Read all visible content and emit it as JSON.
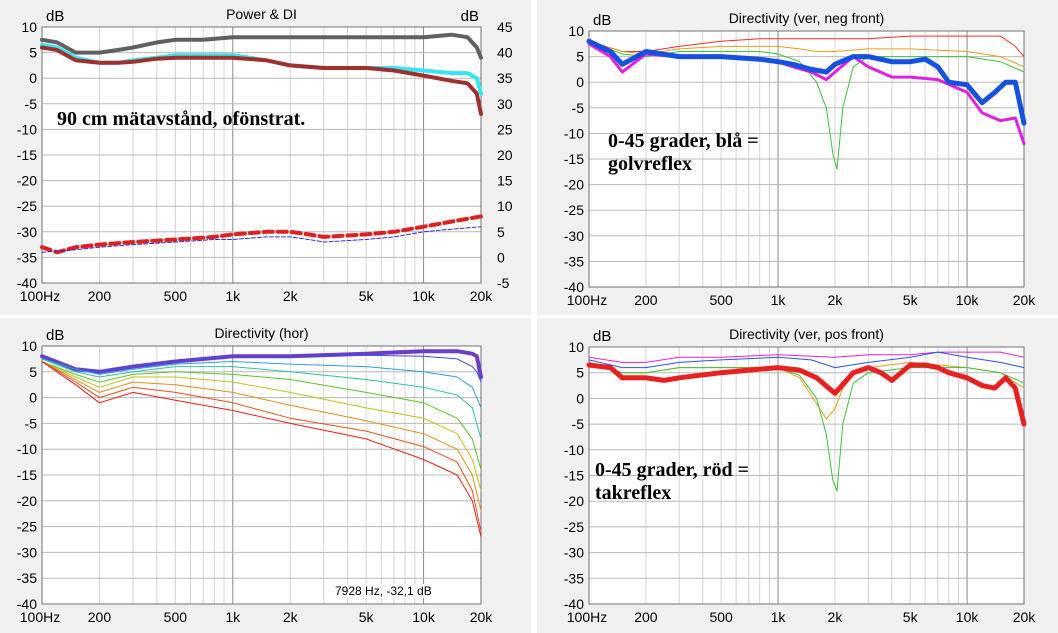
{
  "chart_data": [
    {
      "type": "line",
      "title": "Power & DI",
      "ylabel_left": "dB",
      "ylabel_right": "dB",
      "x_scale": "log",
      "xlim": [
        100,
        20000
      ],
      "ylim": [
        -40,
        10
      ],
      "y2lim": [
        -5,
        45
      ],
      "x_ticks": [
        "100Hz",
        "200",
        "500",
        "1k",
        "2k",
        "5k",
        "10k",
        "20k"
      ],
      "y_ticks": [
        "10",
        "5",
        "0",
        "-5",
        "-10",
        "-15",
        "-20",
        "-25",
        "-30",
        "-35",
        "-40"
      ],
      "y2_ticks": [
        "45",
        "40",
        "35",
        "30",
        "25",
        "20",
        "15",
        "10",
        "5",
        "0",
        "-5"
      ],
      "grid": true,
      "annotation": "90 cm mätavstånd, ofönstrat.",
      "series": [
        {
          "color": "#606060",
          "width": 4,
          "x": [
            100,
            120,
            150,
            200,
            250,
            300,
            400,
            500,
            700,
            1000,
            1500,
            2000,
            3000,
            5000,
            7000,
            10000,
            14000,
            17000,
            19000,
            20000
          ],
          "y": [
            7.5,
            7,
            5,
            5,
            5.5,
            6,
            7,
            7.5,
            7.5,
            8,
            8,
            8,
            8,
            8,
            8,
            8,
            8.5,
            8,
            6,
            4
          ]
        },
        {
          "color": "#33e6f0",
          "width": 4,
          "x": [
            100,
            120,
            150,
            200,
            250,
            300,
            400,
            500,
            700,
            1000,
            1500,
            2000,
            3000,
            5000,
            7000,
            10000,
            14000,
            17000,
            19000,
            20000
          ],
          "y": [
            6.5,
            6,
            4,
            3,
            3,
            3.5,
            4,
            4.5,
            4.5,
            4.5,
            3.5,
            2.5,
            2,
            2,
            2,
            1.5,
            1,
            1,
            0,
            -3
          ]
        },
        {
          "color": "#a03030",
          "width": 4,
          "x": [
            100,
            120,
            150,
            200,
            250,
            300,
            400,
            500,
            700,
            1000,
            1500,
            2000,
            3000,
            5000,
            7000,
            10000,
            14000,
            17000,
            19000,
            20000
          ],
          "y": [
            6,
            5.5,
            3.5,
            3,
            3,
            3.2,
            3.8,
            4,
            4,
            4,
            3.5,
            2.5,
            2,
            2,
            1.5,
            0.5,
            -0.5,
            -1,
            -3,
            -7
          ]
        },
        {
          "color": "#e02020",
          "width": 4,
          "dash": "9,5",
          "x": [
            100,
            120,
            150,
            200,
            300,
            500,
            800,
            1000,
            1500,
            2000,
            2500,
            3000,
            5000,
            7000,
            10000,
            14000,
            20000
          ],
          "y": [
            -33,
            -34,
            -33,
            -32.5,
            -32,
            -31.5,
            -31,
            -30.5,
            -30,
            -30,
            -30.5,
            -31,
            -30.5,
            -30,
            -29,
            -28,
            -27
          ]
        },
        {
          "color": "#3030d0",
          "width": 1,
          "dash": "4,2",
          "x": [
            100,
            150,
            200,
            300,
            500,
            800,
            1000,
            1500,
            2000,
            2500,
            3000,
            5000,
            7000,
            10000,
            14000,
            20000
          ],
          "y": [
            -34,
            -33.5,
            -33,
            -32.5,
            -32,
            -31.5,
            -31.5,
            -31,
            -31,
            -31.5,
            -32,
            -31.5,
            -31,
            -30,
            -29.5,
            -29
          ]
        }
      ]
    },
    {
      "type": "line",
      "title": "Directivity (ver, neg front)",
      "ylabel_left": "dB",
      "x_scale": "log",
      "xlim": [
        100,
        20000
      ],
      "ylim": [
        -40,
        10
      ],
      "x_ticks": [
        "100Hz",
        "200",
        "500",
        "1k",
        "2k",
        "5k",
        "10k",
        "20k"
      ],
      "y_ticks": [
        "10",
        "5",
        "0",
        "-5",
        "-10",
        "-15",
        "-20",
        "-25",
        "-30",
        "-35",
        "-40"
      ],
      "grid": true,
      "annotation": "0-45 grader, blå =\ngolvreflex",
      "series": [
        {
          "color": "#e83030",
          "width": 1,
          "x": [
            100,
            150,
            200,
            300,
            500,
            800,
            1000,
            1500,
            2000,
            3000,
            5000,
            10000,
            15000,
            18000,
            20000
          ],
          "y": [
            8,
            6,
            6,
            7,
            8,
            8.5,
            8.5,
            8.5,
            8.5,
            8.5,
            9,
            9,
            9,
            7,
            5
          ]
        },
        {
          "color": "#e0a020",
          "width": 1,
          "x": [
            100,
            150,
            200,
            300,
            500,
            800,
            1000,
            1300,
            1600,
            2000,
            3000,
            5000,
            10000,
            15000,
            20000
          ],
          "y": [
            8,
            6,
            5.5,
            6.5,
            7,
            7,
            7,
            6.5,
            6,
            6,
            6.5,
            6.5,
            6,
            5,
            3
          ]
        },
        {
          "color": "#40c040",
          "width": 1,
          "x": [
            100,
            150,
            200,
            300,
            500,
            800,
            1000,
            1300,
            1600,
            1800,
            1950,
            2050,
            2200,
            2500,
            3000,
            5000,
            10000,
            15000,
            20000
          ],
          "y": [
            8,
            5.5,
            5,
            6,
            6,
            6,
            5.5,
            4,
            0,
            -5,
            -14,
            -17,
            -5,
            3,
            5,
            5,
            5,
            4,
            2
          ]
        },
        {
          "color": "#e020e0",
          "width": 3,
          "x": [
            100,
            130,
            150,
            200,
            300,
            500,
            800,
            1000,
            1200,
            1500,
            1800,
            2000,
            2500,
            3000,
            4000,
            5000,
            7000,
            10000,
            12000,
            15000,
            18000,
            20000
          ],
          "y": [
            7.5,
            5,
            2,
            5.5,
            5,
            5,
            4.5,
            4,
            3,
            2,
            0.5,
            2,
            5,
            3,
            1,
            1,
            0.5,
            -2,
            -6,
            -7.5,
            -7,
            -12
          ]
        },
        {
          "color": "#1550e0",
          "width": 5,
          "x": [
            100,
            130,
            150,
            200,
            300,
            500,
            800,
            1000,
            1200,
            1500,
            1800,
            2000,
            2500,
            3000,
            4000,
            5000,
            6000,
            7000,
            8000,
            10000,
            12000,
            14000,
            16000,
            18000,
            20000
          ],
          "y": [
            8,
            6,
            3.5,
            6,
            5,
            5,
            4.5,
            4,
            3.5,
            2.5,
            2,
            3.5,
            5,
            5,
            4,
            4,
            4.5,
            3,
            0,
            -0.5,
            -4,
            -2,
            0,
            0,
            -8
          ]
        }
      ]
    },
    {
      "type": "line",
      "title": "Directivity (hor)",
      "ylabel_left": "dB",
      "x_scale": "log",
      "xlim": [
        100,
        20000
      ],
      "ylim": [
        -40,
        10
      ],
      "x_ticks": [
        "100Hz",
        "200",
        "500",
        "1k",
        "2k",
        "5k",
        "10k",
        "20k"
      ],
      "y_ticks": [
        "10",
        "5",
        "0",
        "-5",
        "-10",
        "-15",
        "-20",
        "-25",
        "-30",
        "-35",
        "-40"
      ],
      "grid": true,
      "readout": "7928 Hz, -32,1 dB",
      "series": [
        {
          "color": "#6a3cc8",
          "width": 4,
          "x": [
            100,
            150,
            200,
            300,
            500,
            1000,
            2000,
            5000,
            10000,
            15000,
            18000,
            19000,
            20000
          ],
          "y": [
            8,
            5.5,
            5,
            6,
            7,
            8,
            8,
            8.5,
            9,
            9,
            8.5,
            8,
            4
          ]
        },
        {
          "color": "#4050e0",
          "width": 1,
          "x": [
            100,
            150,
            200,
            300,
            500,
            1000,
            2000,
            5000,
            10000,
            15000,
            18000,
            19000,
            20000
          ],
          "y": [
            8,
            5.5,
            5,
            6,
            7,
            8,
            8,
            8.2,
            8,
            7.5,
            6,
            5,
            3
          ]
        },
        {
          "color": "#30a0e0",
          "width": 1,
          "x": [
            100,
            150,
            200,
            300,
            500,
            1000,
            2000,
            5000,
            10000,
            15000,
            18000,
            20000
          ],
          "y": [
            7.5,
            5.5,
            4.5,
            5.5,
            6.5,
            7,
            6.5,
            6,
            5,
            4,
            2,
            -2
          ]
        },
        {
          "color": "#30c0a0",
          "width": 1,
          "x": [
            100,
            150,
            200,
            300,
            500,
            1000,
            2000,
            5000,
            10000,
            15000,
            18000,
            20000
          ],
          "y": [
            7.5,
            5,
            4,
            5,
            6,
            6,
            5,
            3.5,
            2,
            0.5,
            -2,
            -8
          ]
        },
        {
          "color": "#60c030",
          "width": 1,
          "x": [
            100,
            150,
            200,
            300,
            500,
            1000,
            2000,
            5000,
            10000,
            15000,
            18000,
            20000
          ],
          "y": [
            7,
            4.5,
            3,
            4.5,
            5,
            4.5,
            3.5,
            1,
            -1,
            -4,
            -8,
            -14
          ]
        },
        {
          "color": "#c0c020",
          "width": 1,
          "x": [
            100,
            150,
            200,
            300,
            500,
            1000,
            2000,
            5000,
            10000,
            15000,
            18000,
            20000
          ],
          "y": [
            7,
            4,
            2,
            4,
            4,
            3,
            1,
            -2,
            -4,
            -7,
            -12,
            -18
          ]
        },
        {
          "color": "#e09020",
          "width": 1,
          "x": [
            100,
            150,
            200,
            300,
            500,
            1000,
            2000,
            5000,
            10000,
            15000,
            18000,
            20000
          ],
          "y": [
            7,
            3.5,
            1,
            3,
            2.5,
            1,
            -1.5,
            -4.5,
            -7,
            -10,
            -15,
            -22
          ]
        },
        {
          "color": "#e05020",
          "width": 1,
          "x": [
            100,
            150,
            200,
            300,
            500,
            1000,
            2000,
            5000,
            10000,
            15000,
            18000,
            20000
          ],
          "y": [
            7,
            3,
            0,
            2,
            1,
            -1,
            -4,
            -6.5,
            -9.5,
            -12.5,
            -18,
            -26
          ]
        },
        {
          "color": "#e02020",
          "width": 1,
          "x": [
            100,
            150,
            200,
            300,
            500,
            1000,
            2000,
            5000,
            10000,
            15000,
            18000,
            20000
          ],
          "y": [
            7,
            2.5,
            -1,
            1,
            -0.5,
            -2.5,
            -5,
            -8,
            -12,
            -15,
            -20,
            -27
          ]
        }
      ]
    },
    {
      "type": "line",
      "title": "Directivity (ver, pos front)",
      "ylabel_left": "dB",
      "x_scale": "log",
      "xlim": [
        100,
        20000
      ],
      "ylim": [
        -40,
        10
      ],
      "x_ticks": [
        "100Hz",
        "200",
        "500",
        "1k",
        "2k",
        "5k",
        "10k",
        "20k"
      ],
      "y_ticks": [
        "10",
        "5",
        "0",
        "-5",
        "-10",
        "-15",
        "-20",
        "-25",
        "-30",
        "-35",
        "-40"
      ],
      "grid": true,
      "annotation": "0-45 grader, röd =\ntakreflex",
      "series": [
        {
          "color": "#e020e0",
          "width": 1,
          "x": [
            100,
            150,
            200,
            300,
            500,
            1000,
            2000,
            3000,
            5000,
            7000,
            10000,
            15000,
            20000
          ],
          "y": [
            8,
            7,
            7,
            8,
            8,
            8.5,
            8,
            8.5,
            8.5,
            9,
            9,
            9,
            8
          ]
        },
        {
          "color": "#3050e0",
          "width": 1,
          "x": [
            100,
            150,
            200,
            300,
            500,
            1000,
            1500,
            2000,
            3000,
            5000,
            7000,
            10000,
            15000,
            20000
          ],
          "y": [
            7.5,
            6,
            6,
            7,
            7.5,
            8,
            7.5,
            6,
            7,
            8,
            9,
            8,
            7,
            6
          ]
        },
        {
          "color": "#e0a020",
          "width": 1,
          "x": [
            100,
            150,
            200,
            300,
            500,
            1000,
            1300,
            1600,
            1800,
            2000,
            2200,
            2500,
            3000,
            5000,
            10000,
            15000,
            20000
          ],
          "y": [
            7,
            5,
            5,
            6,
            6,
            6,
            4,
            -1,
            -4,
            -2,
            2,
            5,
            6,
            7,
            6,
            5,
            2
          ]
        },
        {
          "color": "#40c040",
          "width": 1,
          "x": [
            100,
            150,
            200,
            300,
            500,
            1000,
            1300,
            1600,
            1800,
            1950,
            2050,
            2200,
            2500,
            3000,
            5000,
            10000,
            15000,
            20000
          ],
          "y": [
            7,
            5,
            5,
            6,
            6,
            6,
            4.5,
            0,
            -7,
            -16,
            -18,
            -5,
            3,
            5,
            6,
            6,
            5,
            3
          ]
        },
        {
          "color": "#e82020",
          "width": 5,
          "x": [
            100,
            130,
            150,
            200,
            250,
            300,
            500,
            700,
            1000,
            1300,
            1600,
            2000,
            2500,
            3000,
            3500,
            4000,
            5000,
            6000,
            7000,
            8000,
            10000,
            12000,
            14000,
            16000,
            18000,
            20000
          ],
          "y": [
            6.5,
            6,
            4,
            4,
            3.5,
            4,
            5,
            5.5,
            6,
            5.5,
            4,
            1,
            5,
            6,
            5,
            3.5,
            6.5,
            6.5,
            6,
            5,
            4,
            2.5,
            2,
            4,
            2,
            -5
          ]
        }
      ]
    }
  ]
}
